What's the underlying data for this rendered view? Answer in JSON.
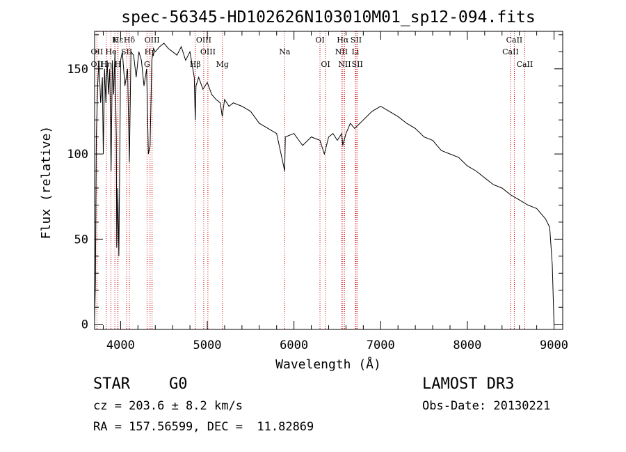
{
  "chart_data": {
    "type": "line",
    "title": "spec-56345-HD102626N103010M01_sp12-094.fits",
    "xlabel": "Wavelength (Å)",
    "ylabel": "Flux (relative)",
    "xlim": [
      3700,
      9100
    ],
    "ylim": [
      -3,
      172
    ],
    "xticks": [
      4000,
      5000,
      6000,
      7000,
      8000,
      9000
    ],
    "yticks": [
      0,
      50,
      100,
      150
    ],
    "series": [
      {
        "name": "flux",
        "x": [
          3700,
          3710,
          3720,
          3735,
          3750,
          3770,
          3790,
          3800,
          3815,
          3830,
          3845,
          3860,
          3875,
          3890,
          3905,
          3920,
          3935,
          3950,
          3955,
          3968,
          3980,
          4000,
          4020,
          4050,
          4080,
          4101,
          4120,
          4150,
          4180,
          4210,
          4240,
          4270,
          4300,
          4320,
          4340,
          4360,
          4380,
          4400,
          4450,
          4500,
          4550,
          4600,
          4650,
          4700,
          4750,
          4800,
          4850,
          4861,
          4870,
          4900,
          4950,
          5000,
          5050,
          5100,
          5150,
          5172,
          5200,
          5250,
          5300,
          5400,
          5500,
          5600,
          5700,
          5800,
          5893,
          5900,
          6000,
          6100,
          6200,
          6300,
          6350,
          6400,
          6450,
          6500,
          6550,
          6563,
          6600,
          6650,
          6700,
          6800,
          6900,
          7000,
          7100,
          7200,
          7300,
          7400,
          7500,
          7600,
          7700,
          7800,
          7900,
          8000,
          8100,
          8200,
          8300,
          8400,
          8500,
          8600,
          8700,
          8800,
          8850,
          8900,
          8950,
          8980,
          9000
        ],
        "values": [
          2,
          25,
          110,
          140,
          155,
          130,
          145,
          100,
          150,
          130,
          155,
          135,
          150,
          90,
          155,
          135,
          160,
          110,
          45,
          80,
          40,
          155,
          160,
          140,
          150,
          95,
          160,
          158,
          145,
          160,
          155,
          140,
          150,
          100,
          105,
          155,
          162,
          160,
          163,
          165,
          162,
          160,
          158,
          163,
          155,
          160,
          145,
          120,
          140,
          145,
          138,
          142,
          135,
          132,
          130,
          122,
          132,
          128,
          130,
          128,
          125,
          118,
          115,
          112,
          90,
          110,
          112,
          105,
          110,
          108,
          100,
          110,
          112,
          108,
          112,
          105,
          112,
          118,
          115,
          120,
          125,
          128,
          125,
          122,
          118,
          115,
          110,
          108,
          102,
          100,
          98,
          93,
          90,
          86,
          82,
          80,
          76,
          73,
          70,
          68,
          65,
          62,
          57,
          35,
          0
        ]
      }
    ],
    "line_annotations": [
      {
        "label": "Hδ",
        "wavelength": 4101,
        "row": 1
      },
      {
        "label": "K",
        "wavelength": 3934,
        "row": 1
      },
      {
        "label": "Hε",
        "wavelength": 3970,
        "row": 1
      },
      {
        "label": "OIII",
        "wavelength": 4363,
        "row": 1
      },
      {
        "label": "OIII",
        "wavelength": 4959,
        "row": 1
      },
      {
        "label": "OI",
        "wavelength": 6300,
        "row": 1
      },
      {
        "label": "Hα",
        "wavelength": 6563,
        "row": 1
      },
      {
        "label": "SII",
        "wavelength": 6717,
        "row": 1
      },
      {
        "label": "CaII",
        "wavelength": 8542,
        "row": 1
      },
      {
        "label": "OII",
        "wavelength": 3727,
        "row": 2
      },
      {
        "label": "He",
        "wavelength": 3889,
        "row": 2
      },
      {
        "label": "SII",
        "wavelength": 4070,
        "row": 2
      },
      {
        "label": "Hγ",
        "wavelength": 4340,
        "row": 2
      },
      {
        "label": "OIII",
        "wavelength": 5007,
        "row": 2
      },
      {
        "label": "Na",
        "wavelength": 5893,
        "row": 2
      },
      {
        "label": "NII",
        "wavelength": 6548,
        "row": 2
      },
      {
        "label": "Li",
        "wavelength": 6708,
        "row": 2
      },
      {
        "label": "CaII",
        "wavelength": 8498,
        "row": 2
      },
      {
        "label": "OII",
        "wavelength": 3727,
        "row": 3
      },
      {
        "label": "Hη",
        "wavelength": 3835,
        "row": 3
      },
      {
        "label": "H",
        "wavelength": 3968,
        "row": 3
      },
      {
        "label": "G",
        "wavelength": 4305,
        "row": 3
      },
      {
        "label": "Hβ",
        "wavelength": 4861,
        "row": 3
      },
      {
        "label": "Mg",
        "wavelength": 5175,
        "row": 3
      },
      {
        "label": "OI",
        "wavelength": 6364,
        "row": 3
      },
      {
        "label": "NII",
        "wavelength": 6584,
        "row": 3
      },
      {
        "label": "SII",
        "wavelength": 6731,
        "row": 3
      },
      {
        "label": "CaII",
        "wavelength": 8662,
        "row": 3
      }
    ]
  },
  "info": {
    "object_class": "STAR",
    "subclass": "G0",
    "survey": "LAMOST DR3",
    "cz": "cz = 203.6 ± 8.2 km/s",
    "obs_date": "Obs-Date: 20130221",
    "coords": "RA = 157.56599, DEC =  11.82869"
  },
  "colors": {
    "spectrum": "#000000",
    "line_marker": "#cc0000",
    "axis": "#000000"
  }
}
